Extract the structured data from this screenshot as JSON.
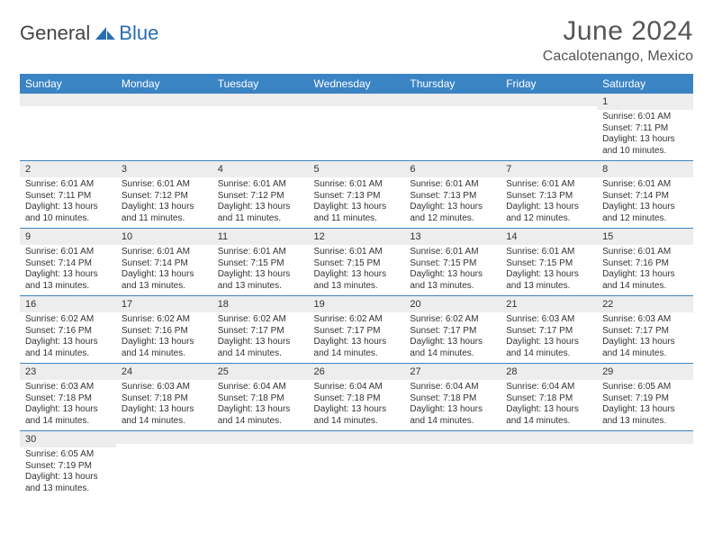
{
  "brand": {
    "part1": "General",
    "part2": "Blue"
  },
  "title": "June 2024",
  "location": "Cacalotenango, Mexico",
  "colors": {
    "header_bg": "#3b84c4",
    "header_fg": "#ffffff",
    "daynum_bg": "#ededed",
    "row_border": "#3b84c4",
    "brand_accent": "#2a6db0"
  },
  "day_headers": [
    "Sunday",
    "Monday",
    "Tuesday",
    "Wednesday",
    "Thursday",
    "Friday",
    "Saturday"
  ],
  "weeks": [
    [
      null,
      null,
      null,
      null,
      null,
      null,
      {
        "n": "1",
        "sr": "6:01 AM",
        "ss": "7:11 PM",
        "dl": "13 hours and 10 minutes."
      }
    ],
    [
      {
        "n": "2",
        "sr": "6:01 AM",
        "ss": "7:11 PM",
        "dl": "13 hours and 10 minutes."
      },
      {
        "n": "3",
        "sr": "6:01 AM",
        "ss": "7:12 PM",
        "dl": "13 hours and 11 minutes."
      },
      {
        "n": "4",
        "sr": "6:01 AM",
        "ss": "7:12 PM",
        "dl": "13 hours and 11 minutes."
      },
      {
        "n": "5",
        "sr": "6:01 AM",
        "ss": "7:13 PM",
        "dl": "13 hours and 11 minutes."
      },
      {
        "n": "6",
        "sr": "6:01 AM",
        "ss": "7:13 PM",
        "dl": "13 hours and 12 minutes."
      },
      {
        "n": "7",
        "sr": "6:01 AM",
        "ss": "7:13 PM",
        "dl": "13 hours and 12 minutes."
      },
      {
        "n": "8",
        "sr": "6:01 AM",
        "ss": "7:14 PM",
        "dl": "13 hours and 12 minutes."
      }
    ],
    [
      {
        "n": "9",
        "sr": "6:01 AM",
        "ss": "7:14 PM",
        "dl": "13 hours and 13 minutes."
      },
      {
        "n": "10",
        "sr": "6:01 AM",
        "ss": "7:14 PM",
        "dl": "13 hours and 13 minutes."
      },
      {
        "n": "11",
        "sr": "6:01 AM",
        "ss": "7:15 PM",
        "dl": "13 hours and 13 minutes."
      },
      {
        "n": "12",
        "sr": "6:01 AM",
        "ss": "7:15 PM",
        "dl": "13 hours and 13 minutes."
      },
      {
        "n": "13",
        "sr": "6:01 AM",
        "ss": "7:15 PM",
        "dl": "13 hours and 13 minutes."
      },
      {
        "n": "14",
        "sr": "6:01 AM",
        "ss": "7:15 PM",
        "dl": "13 hours and 13 minutes."
      },
      {
        "n": "15",
        "sr": "6:01 AM",
        "ss": "7:16 PM",
        "dl": "13 hours and 14 minutes."
      }
    ],
    [
      {
        "n": "16",
        "sr": "6:02 AM",
        "ss": "7:16 PM",
        "dl": "13 hours and 14 minutes."
      },
      {
        "n": "17",
        "sr": "6:02 AM",
        "ss": "7:16 PM",
        "dl": "13 hours and 14 minutes."
      },
      {
        "n": "18",
        "sr": "6:02 AM",
        "ss": "7:17 PM",
        "dl": "13 hours and 14 minutes."
      },
      {
        "n": "19",
        "sr": "6:02 AM",
        "ss": "7:17 PM",
        "dl": "13 hours and 14 minutes."
      },
      {
        "n": "20",
        "sr": "6:02 AM",
        "ss": "7:17 PM",
        "dl": "13 hours and 14 minutes."
      },
      {
        "n": "21",
        "sr": "6:03 AM",
        "ss": "7:17 PM",
        "dl": "13 hours and 14 minutes."
      },
      {
        "n": "22",
        "sr": "6:03 AM",
        "ss": "7:17 PM",
        "dl": "13 hours and 14 minutes."
      }
    ],
    [
      {
        "n": "23",
        "sr": "6:03 AM",
        "ss": "7:18 PM",
        "dl": "13 hours and 14 minutes."
      },
      {
        "n": "24",
        "sr": "6:03 AM",
        "ss": "7:18 PM",
        "dl": "13 hours and 14 minutes."
      },
      {
        "n": "25",
        "sr": "6:04 AM",
        "ss": "7:18 PM",
        "dl": "13 hours and 14 minutes."
      },
      {
        "n": "26",
        "sr": "6:04 AM",
        "ss": "7:18 PM",
        "dl": "13 hours and 14 minutes."
      },
      {
        "n": "27",
        "sr": "6:04 AM",
        "ss": "7:18 PM",
        "dl": "13 hours and 14 minutes."
      },
      {
        "n": "28",
        "sr": "6:04 AM",
        "ss": "7:18 PM",
        "dl": "13 hours and 14 minutes."
      },
      {
        "n": "29",
        "sr": "6:05 AM",
        "ss": "7:19 PM",
        "dl": "13 hours and 13 minutes."
      }
    ],
    [
      {
        "n": "30",
        "sr": "6:05 AM",
        "ss": "7:19 PM",
        "dl": "13 hours and 13 minutes."
      },
      null,
      null,
      null,
      null,
      null,
      null
    ]
  ],
  "labels": {
    "sunrise": "Sunrise:",
    "sunset": "Sunset:",
    "daylight": "Daylight:"
  }
}
